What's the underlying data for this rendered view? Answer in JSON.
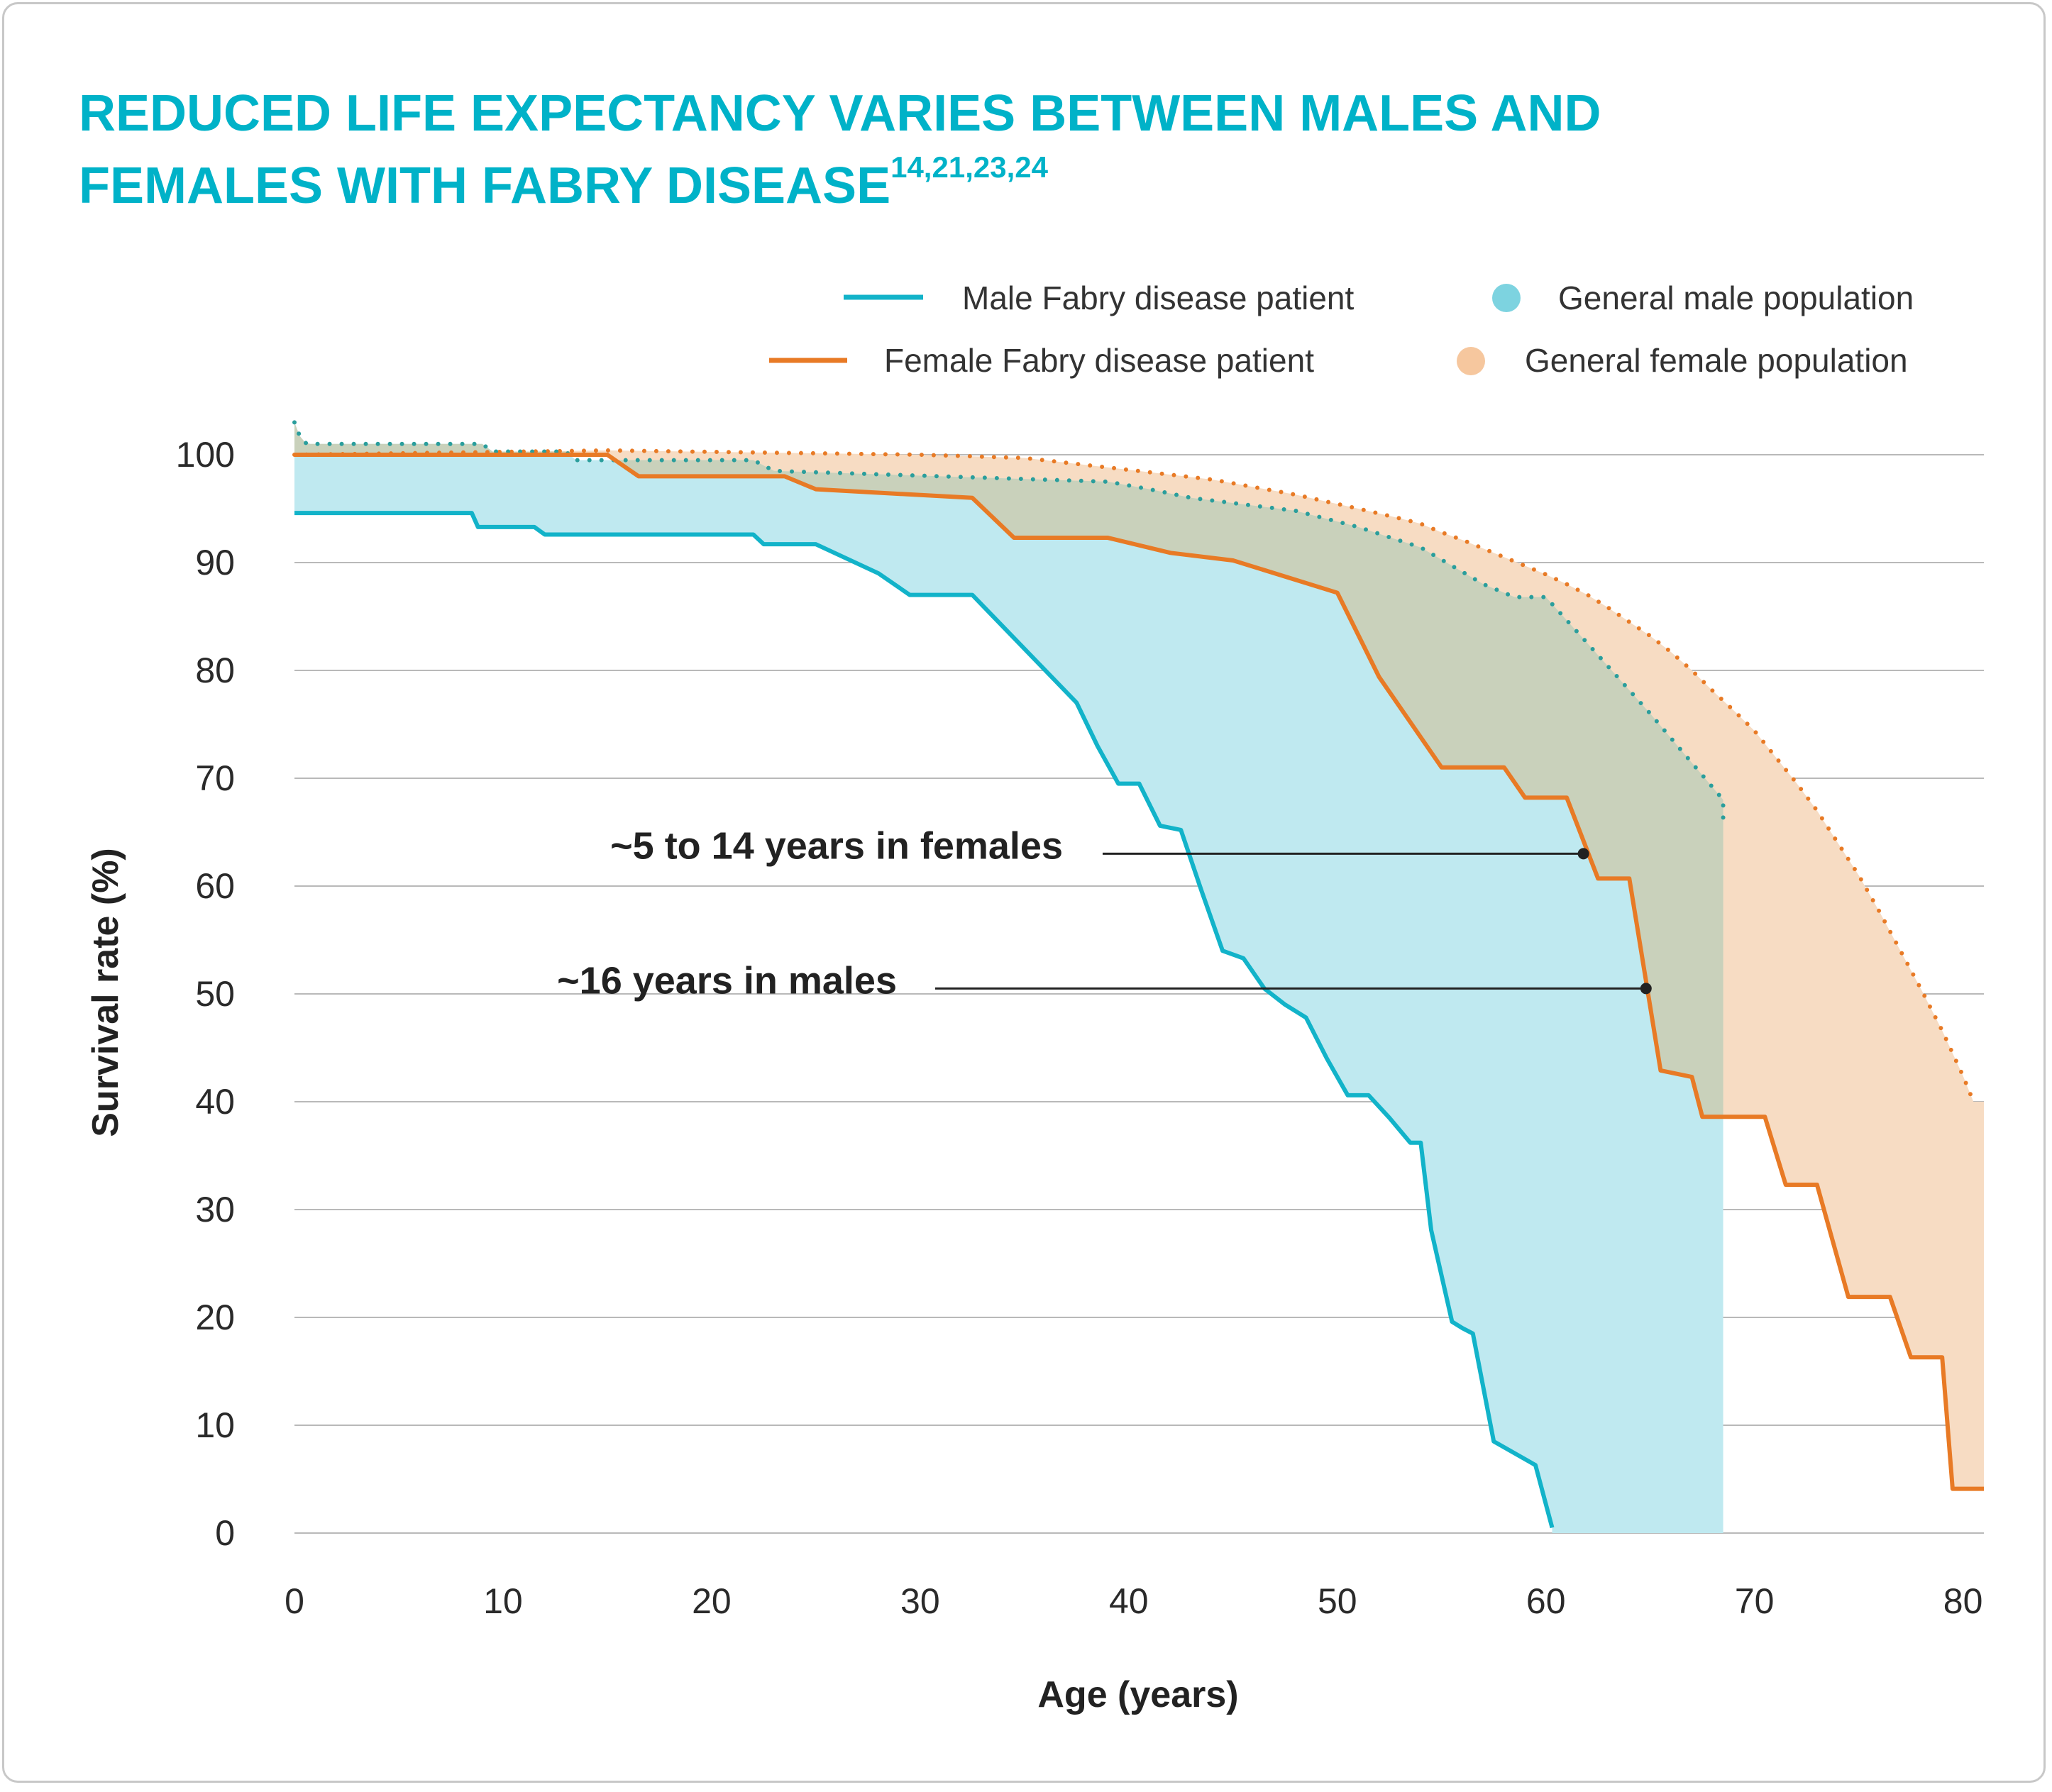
{
  "title": {
    "line1": "REDUCED LIFE EXPECTANCY VARIES BETWEEN MALES AND",
    "line2": "FEMALES WITH FABRY DISEASE",
    "superscript": "14,21,23,24"
  },
  "colors": {
    "title": "#00b2c8",
    "male_line": "#12b3c9",
    "male_fill": "#bfe9f0",
    "female_line": "#e87a25",
    "female_fill": "#f7dcc3",
    "overlap_fill": "#c9d1bb",
    "male_general_dots": "#2a9e9c",
    "female_general_dots": "#e87a25",
    "legend_male_dot": "#7dd3e0",
    "legend_female_dot": "#f6c79e",
    "grid": "#b9b9b9",
    "annotation": "#222222"
  },
  "legend": [
    {
      "label": "Male Fabry disease patient",
      "marker": "line",
      "color": "#12b3c9"
    },
    {
      "label": "General male population",
      "marker": "dot",
      "color": "#7dd3e0"
    },
    {
      "label": "Female Fabry disease patient",
      "marker": "line",
      "color": "#e87a25"
    },
    {
      "label": "General female population",
      "marker": "dot",
      "color": "#f6c79e"
    }
  ],
  "annotations": [
    {
      "text": "~5 to 14 years in females",
      "point_age": 61.8,
      "point_rate": 63
    },
    {
      "text": "~16 years in males",
      "point_age": 64.8,
      "point_rate": 50.5
    }
  ],
  "chart_data": {
    "type": "line",
    "xlabel": "Age (years)",
    "ylabel": "Survival rate (%)",
    "xlim": [
      0,
      81
    ],
    "ylim": [
      0,
      100
    ],
    "xticks": [
      0,
      10,
      20,
      30,
      40,
      50,
      60,
      70,
      80
    ],
    "yticks": [
      0,
      10,
      20,
      30,
      40,
      50,
      60,
      70,
      80,
      90,
      100
    ],
    "grid": "horizontal",
    "legend_position": "top-right",
    "series": [
      {
        "name": "Male Fabry disease patient",
        "style": "solid",
        "x": [
          0,
          8.5,
          8.8,
          11.5,
          12,
          22,
          22.5,
          25,
          28,
          29.5,
          32.5,
          33.5,
          35.5,
          36.5,
          37.5,
          38.5,
          39.5,
          40.5,
          41.5,
          42.5,
          43.5,
          44.5,
          45.5,
          46.5,
          47.5,
          48.5,
          49.5,
          50.5,
          51.5,
          52.5,
          53.5,
          54,
          54.5,
          55.5,
          56,
          56.5,
          57.5,
          59.5,
          60.3
        ],
        "y": [
          94.6,
          94.6,
          93.3,
          93.3,
          92.6,
          92.6,
          91.7,
          91.7,
          89,
          87,
          87,
          85,
          81,
          79,
          77,
          73,
          69.5,
          69.5,
          65.6,
          65.2,
          59.5,
          54,
          53.3,
          50.5,
          49,
          47.8,
          44,
          40.6,
          40.6,
          38.5,
          36.2,
          36.2,
          28.1,
          19.6,
          19,
          18.5,
          8.5,
          6.3,
          0.5
        ]
      },
      {
        "name": "Female Fabry disease patient",
        "style": "solid",
        "x": [
          0,
          15,
          16.5,
          23.5,
          25,
          32.5,
          34.5,
          39,
          42,
          45,
          50,
          52,
          55,
          58,
          59,
          61,
          62.5,
          64,
          65.5,
          67,
          67.5,
          68,
          70.5,
          71.5,
          73,
          74.5,
          76.5,
          77.5,
          79,
          79.5,
          81
        ],
        "y": [
          100,
          100,
          98,
          98,
          96.8,
          96,
          92.3,
          92.3,
          90.9,
          90.2,
          87.2,
          79.4,
          71,
          71,
          68.2,
          68.2,
          60.7,
          60.7,
          42.9,
          42.3,
          38.6,
          38.6,
          38.6,
          32.3,
          32.3,
          21.9,
          21.9,
          16.3,
          16.3,
          4.1,
          4.1
        ]
      },
      {
        "name": "General male population",
        "style": "dotted",
        "x": [
          0,
          0.3,
          0.6,
          1,
          9,
          9.5,
          13,
          13.5,
          22,
          23,
          39,
          41,
          43,
          48,
          51,
          54,
          57,
          58.5,
          60,
          62,
          65,
          68.5,
          68.5
        ],
        "y": [
          103,
          101.5,
          101,
          101,
          101,
          100.3,
          100.3,
          99.5,
          99.5,
          98.5,
          97.5,
          96.8,
          96,
          94.8,
          93.3,
          91.4,
          88,
          86.8,
          86.8,
          82.5,
          76,
          68,
          66
        ]
      },
      {
        "name": "General female population",
        "style": "dotted",
        "x": [
          0,
          15,
          30,
          35,
          40,
          44,
          48,
          51,
          53,
          54,
          55,
          56,
          57,
          58,
          59,
          60,
          61,
          62,
          63,
          64,
          65,
          66,
          67,
          68,
          69,
          70,
          71,
          72,
          73,
          74,
          75,
          76,
          77,
          78,
          79,
          80,
          80.5
        ],
        "y": [
          100,
          100.4,
          100,
          99.7,
          98.6,
          97.7,
          96.3,
          95,
          94.1,
          93.6,
          92.8,
          92.1,
          91.3,
          90.5,
          89.7,
          88.9,
          88,
          87,
          85.8,
          84.5,
          83.2,
          81.7,
          80,
          78.1,
          76.3,
          74.4,
          72,
          69.6,
          67,
          64,
          61,
          57.6,
          54,
          50.4,
          46.6,
          42.4,
          40
        ]
      }
    ]
  }
}
